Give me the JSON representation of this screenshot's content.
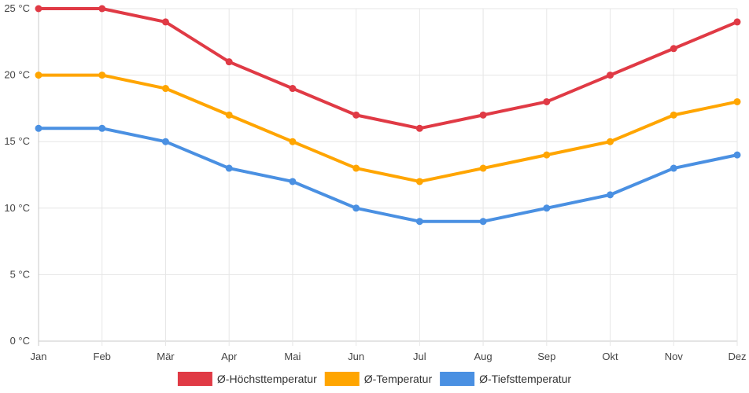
{
  "chart_data": {
    "type": "line",
    "title": "",
    "xlabel": "",
    "ylabel": "",
    "categories": [
      "Jan",
      "Feb",
      "Mär",
      "Apr",
      "Mai",
      "Jun",
      "Jul",
      "Aug",
      "Sep",
      "Okt",
      "Nov",
      "Dez"
    ],
    "ylim": [
      0,
      25
    ],
    "y_ticks": [
      0,
      5,
      10,
      15,
      20,
      25
    ],
    "y_tick_labels": [
      "0 °C",
      "5 °C",
      "10 °C",
      "15 °C",
      "20 °C",
      "25 °C"
    ],
    "grid": true,
    "legend_position": "bottom-center",
    "series": [
      {
        "name": "Ø-Höchsttemperatur",
        "color": "#e03a45",
        "values": [
          25,
          25,
          24,
          21,
          19,
          17,
          16,
          17,
          18,
          20,
          22,
          24
        ]
      },
      {
        "name": "Ø-Temperatur",
        "color": "#ffa500",
        "values": [
          20,
          20,
          19,
          17,
          15,
          13,
          12,
          13,
          14,
          15,
          17,
          18
        ]
      },
      {
        "name": "Ø-Tiefsttemperatur",
        "color": "#4a90e2",
        "values": [
          16,
          16,
          15,
          13,
          12,
          10,
          9,
          9,
          10,
          11,
          13,
          14
        ]
      }
    ]
  }
}
